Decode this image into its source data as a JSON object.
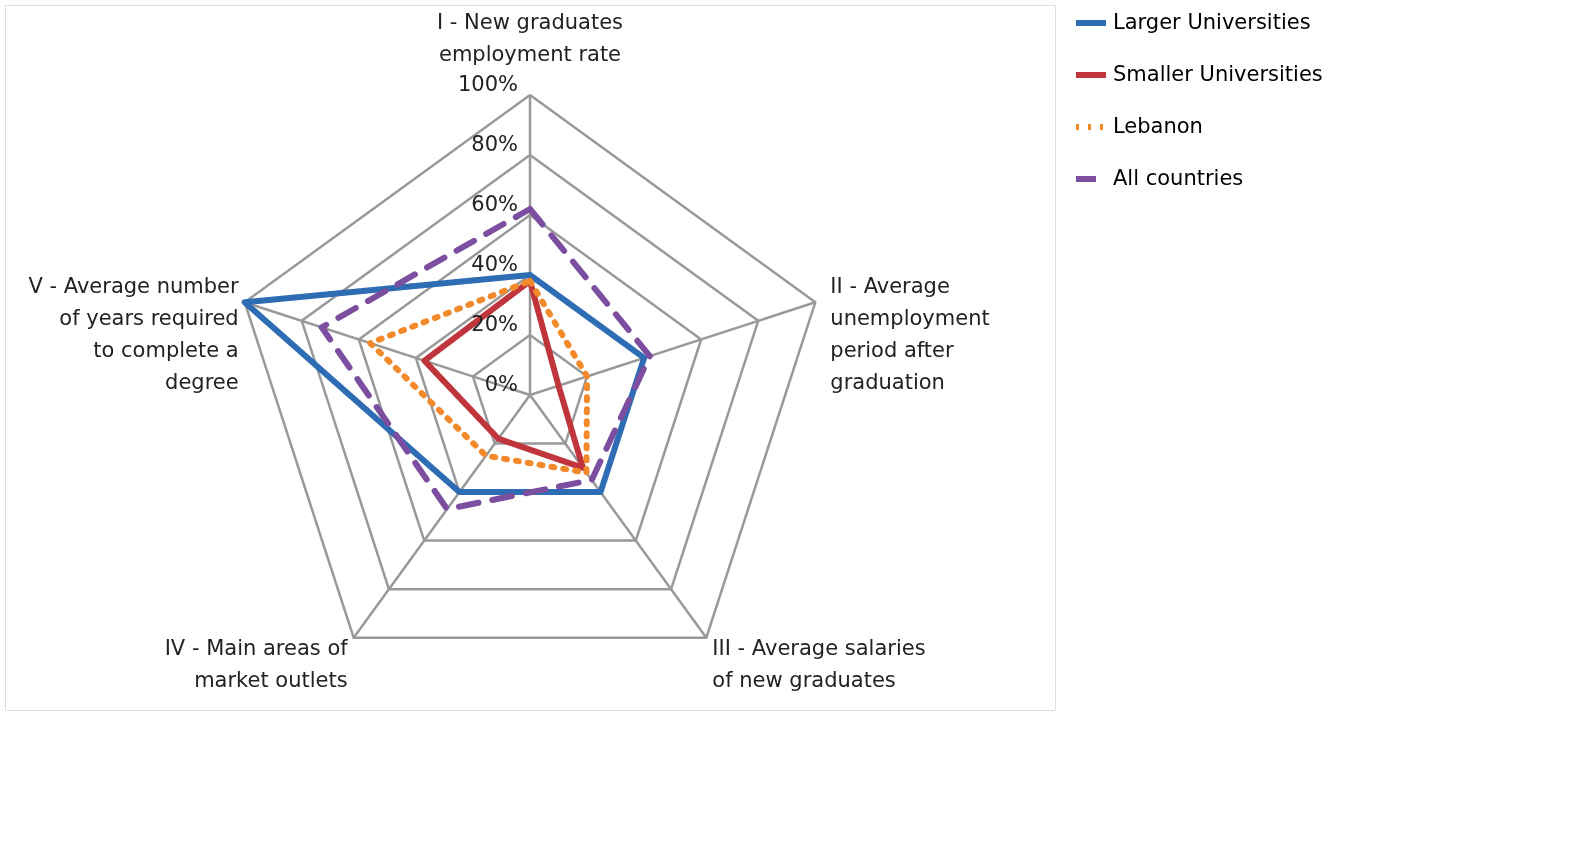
{
  "chart_data": {
    "type": "radar",
    "categories": [
      "I -  New graduates employment rate",
      "II - Average unemployment period after graduation",
      "III - Average salaries of new graduates",
      "IV - Main areas of market outlets",
      "V - Average number of years required to complete a degree"
    ],
    "series": [
      {
        "name": "Larger Universities",
        "color": "#2e6db4",
        "line_style": "solid",
        "values": [
          40,
          40,
          40,
          40,
          100
        ]
      },
      {
        "name": "Smaller Universities",
        "color": "#c0343c",
        "line_style": "solid",
        "values": [
          38,
          10,
          30,
          18,
          37
        ]
      },
      {
        "name": "Lebanon",
        "color": "#f28a2c",
        "line_style": "dotted",
        "values": [
          38,
          20,
          32,
          25,
          56
        ]
      },
      {
        "name": "All countries",
        "color": "#7b4ea0",
        "line_style": "dashed",
        "values": [
          62,
          42,
          35,
          47,
          73
        ]
      }
    ],
    "ylim": [
      0,
      100
    ],
    "yticks": [
      {
        "value": 0,
        "label": "0%"
      },
      {
        "value": 20,
        "label": "20%"
      },
      {
        "value": 40,
        "label": "40%"
      },
      {
        "value": 60,
        "label": "60%"
      },
      {
        "value": 80,
        "label": "80%"
      },
      {
        "value": 100,
        "label": "100%"
      }
    ],
    "grid": true,
    "legend": "right"
  }
}
